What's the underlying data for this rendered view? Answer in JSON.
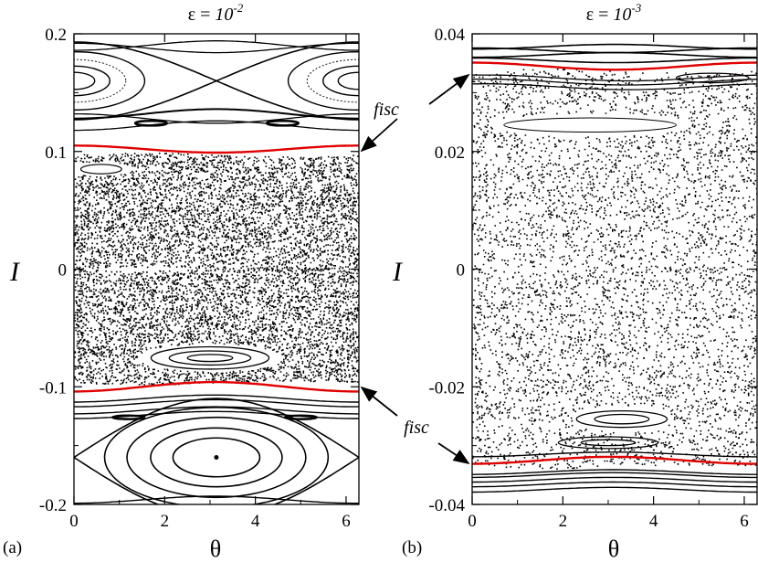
{
  "chart_data": [
    {
      "type": "scatter",
      "panel_label": "(a)",
      "title": {
        "prefix": "ε = ",
        "base": "10",
        "exponent": "-2"
      },
      "xlabel": "θ",
      "ylabel": "I",
      "xlim": [
        0,
        6.283
      ],
      "ylim": [
        -0.2,
        0.2
      ],
      "xticks": [
        0,
        2,
        4,
        6
      ],
      "xtick_labels": [
        "0",
        "2",
        "4",
        "6"
      ],
      "yticks": [
        -0.2,
        -0.1,
        0,
        0.1,
        0.2
      ],
      "ytick_labels": [
        "-0.2",
        "-0.1",
        "0",
        "0.1",
        "0.2"
      ],
      "chaotic_band": [
        -0.095,
        0.095
      ],
      "upper_island": {
        "center_I": 0.16,
        "hyperbolic_theta": 3.14,
        "separatrix_half_width": 0.033
      },
      "lower_island": {
        "center_theta": 3.14,
        "center_I": -0.16,
        "separatrix_half_width": 0.05
      },
      "red_curves": [
        {
          "I_mean": 0.102,
          "amplitude": 0.003,
          "phase": 0.0
        },
        {
          "I_mean": -0.1,
          "amplitude": 0.004,
          "phase": 3.1
        }
      ],
      "annotations": [
        {
          "text": "fisc",
          "points_to": "upper_red_curve"
        },
        {
          "text": "fisc",
          "points_to": "lower_red_curve"
        }
      ],
      "grid": false,
      "legend": "none"
    },
    {
      "type": "scatter",
      "panel_label": "(b)",
      "title": {
        "prefix": "ε = ",
        "base": "10",
        "exponent": "-3"
      },
      "xlabel": "θ",
      "ylabel": "I",
      "xlim": [
        0,
        6.283
      ],
      "ylim": [
        -0.04,
        0.04
      ],
      "xticks": [
        0,
        2,
        4,
        6
      ],
      "xtick_labels": [
        "0",
        "2",
        "4",
        "6"
      ],
      "yticks": [
        -0.04,
        -0.02,
        0,
        0.02,
        0.04
      ],
      "ytick_labels": [
        "-0.04",
        "-0.02",
        "0",
        "0.02",
        "0.04"
      ],
      "chaotic_band": [
        -0.033,
        0.033
      ],
      "red_curves": [
        {
          "I_mean": 0.0345,
          "amplitude": 0.0006,
          "phase": 0.0
        },
        {
          "I_mean": -0.0325,
          "amplitude": 0.0006,
          "phase": 3.1
        }
      ],
      "grid": false,
      "legend": "none"
    }
  ]
}
